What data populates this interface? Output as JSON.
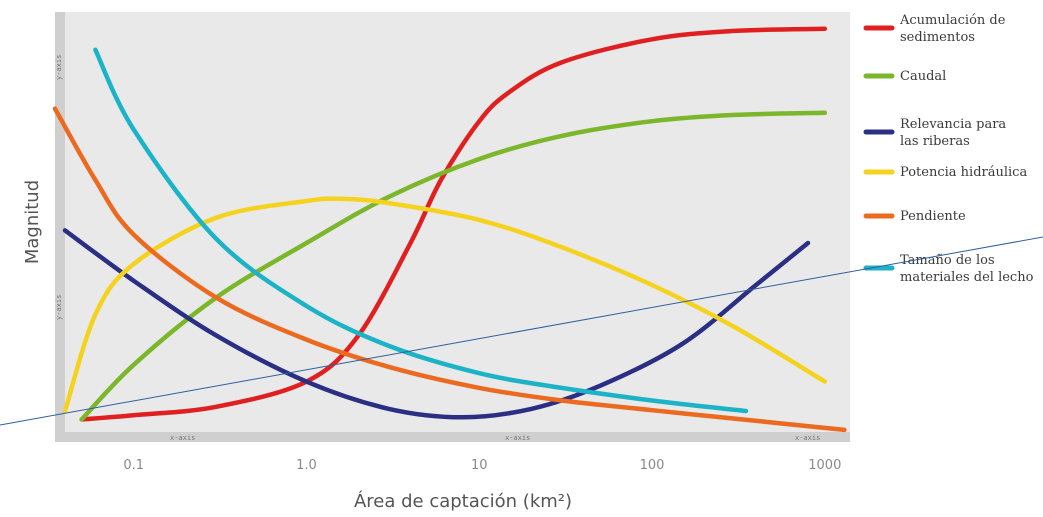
{
  "chart_data": {
    "type": "line",
    "xscale": "log",
    "xlim": [
      0.04,
      1400
    ],
    "ylim": [
      0,
      100
    ],
    "xlabel": "Área de captación (km²)",
    "ylabel": "Magnitud",
    "xticks": [
      0.1,
      1.0,
      10,
      100,
      1000
    ],
    "xtick_labels": [
      "0.1",
      "1.0",
      "10",
      "100",
      "1000"
    ],
    "axis_tags": {
      "x": "x-axis",
      "y": "y-axis"
    },
    "grid": false,
    "legend_position": "right",
    "series": [
      {
        "name": "Acumulación de sedimentos",
        "color": "#e02020",
        "x": [
          0.05,
          0.1,
          0.3,
          1.0,
          2.0,
          4.0,
          6.0,
          10,
          15,
          30,
          100,
          300,
          1000
        ],
        "y": [
          3,
          4,
          6,
          12,
          23,
          45,
          60,
          74,
          81,
          88,
          93.5,
          95.5,
          96
        ]
      },
      {
        "name": "Caudal",
        "color": "#7bb62b",
        "x": [
          0.05,
          0.1,
          0.3,
          1.0,
          3.0,
          10,
          30,
          100,
          300,
          1000
        ],
        "y": [
          3,
          16,
          32,
          45,
          56,
          65,
          70.5,
          74,
          75.5,
          76
        ]
      },
      {
        "name": "Relevancia para las riberas",
        "color": "#2b2f84",
        "x": [
          0.04,
          0.1,
          0.3,
          1.0,
          3.0,
          8.0,
          20,
          50,
          150,
          400,
          800
        ],
        "y": [
          48,
          36,
          23,
          12,
          5.5,
          3.5,
          5.5,
          11,
          21,
          35,
          45
        ]
      },
      {
        "name": "Potencia hidráulica",
        "color": "#f5d21e",
        "x": [
          0.04,
          0.06,
          0.1,
          0.3,
          1.0,
          1.6,
          3.0,
          10,
          30,
          100,
          300,
          1000
        ],
        "y": [
          5,
          28,
          40,
          51,
          55,
          55.5,
          54.5,
          50.5,
          44,
          35,
          25,
          12
        ]
      },
      {
        "name": "Pendiente",
        "color": "#ec6a1f",
        "x": [
          0.035,
          0.06,
          0.1,
          0.3,
          1.0,
          3.0,
          10,
          30,
          100,
          300,
          1300
        ],
        "y": [
          77,
          60,
          47,
          32,
          22,
          15.5,
          10.5,
          7.5,
          5.2,
          3.2,
          0.5
        ]
      },
      {
        "name": "Tamaño de los materiales del lecho",
        "color": "#1db3c7",
        "x": [
          0.06,
          0.1,
          0.3,
          1.0,
          3.0,
          10,
          30,
          100,
          350
        ],
        "y": [
          91,
          72,
          46,
          30,
          20.5,
          14,
          10.5,
          7.5,
          5
        ]
      }
    ]
  },
  "legend_items": [
    {
      "lines": [
        "Acumulación de",
        "sedimentos"
      ],
      "color": "#e02020"
    },
    {
      "lines": [
        "Caudal"
      ],
      "color": "#7bb62b"
    },
    {
      "lines": [
        "Relevancia para",
        "las riberas"
      ],
      "color": "#2b2f84"
    },
    {
      "lines": [
        "Potencia hidráulica"
      ],
      "color": "#f5d21e"
    },
    {
      "lines": [
        "Pendiente"
      ],
      "color": "#ec6a1f"
    },
    {
      "lines": [
        "Tamaño de los",
        "materiales del lecho"
      ],
      "color": "#1db3c7"
    }
  ],
  "colors": {
    "plot_background": "#e9e9e9",
    "axis_strip": "#cfcfcf",
    "annotation_line": "#2e5f9e"
  }
}
